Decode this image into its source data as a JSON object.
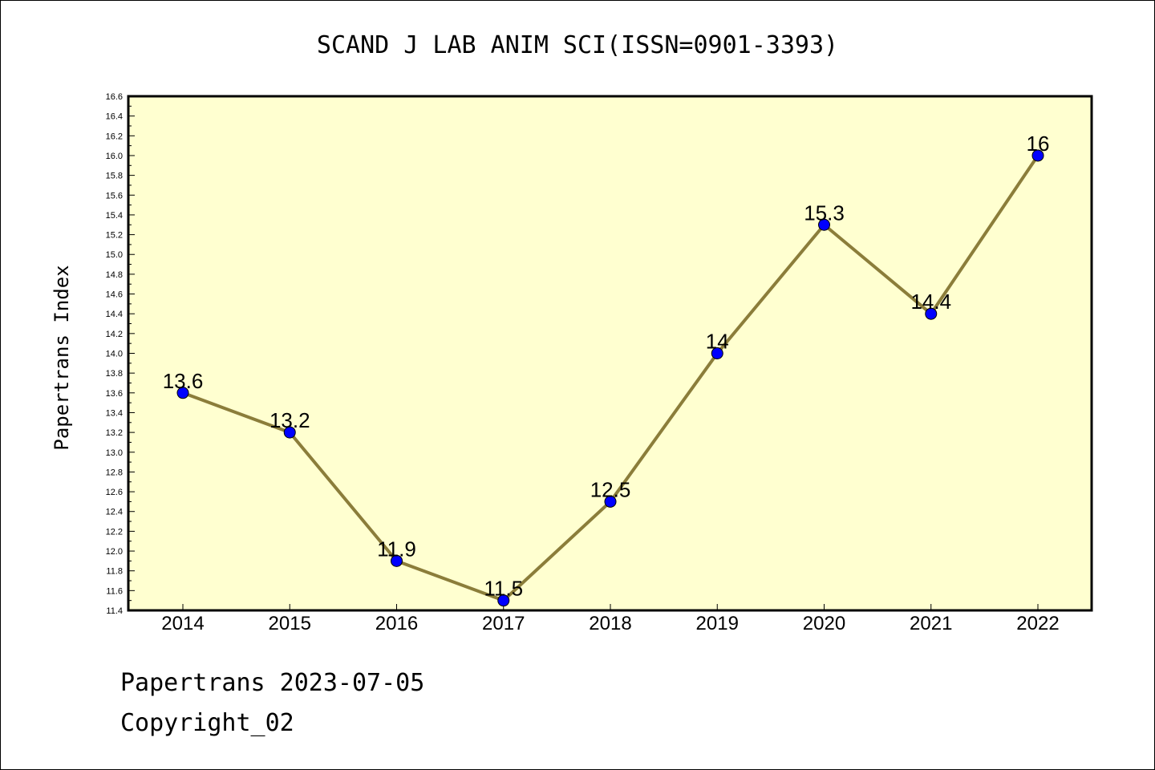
{
  "chart_data": {
    "type": "line",
    "title": "SCAND J LAB ANIM SCI(ISSN=0901-3393)",
    "ylabel": "Papertrans Index",
    "xlabel": "",
    "categories": [
      "2014",
      "2015",
      "2016",
      "2017",
      "2018",
      "2019",
      "2020",
      "2021",
      "2022"
    ],
    "values": [
      13.6,
      13.2,
      11.9,
      11.5,
      12.5,
      14,
      15.3,
      14.4,
      16
    ],
    "data_labels": [
      "13.6",
      "13.2",
      "11.9",
      "11.5",
      "12.5",
      "14",
      "15.3",
      "14.4",
      "16"
    ],
    "ylim": [
      11.4,
      16.6
    ],
    "yticks": [
      "11.4",
      "11.6",
      "11.8",
      "12.0",
      "12.2",
      "12.4",
      "12.6",
      "12.8",
      "13.0",
      "13.2",
      "13.4",
      "13.6",
      "13.8",
      "14.0",
      "14.2",
      "14.4",
      "14.6",
      "14.8",
      "15.0",
      "15.2",
      "15.4",
      "15.6",
      "15.8",
      "16.0",
      "16.2",
      "16.4",
      "16.6"
    ],
    "grid": false,
    "colors": {
      "plot_background": "#ffffd0",
      "line": "#8b7d3a",
      "marker": "#0000ff"
    }
  },
  "footer": {
    "line1": "Papertrans 2023-07-05",
    "line2": "Copyright_02"
  }
}
